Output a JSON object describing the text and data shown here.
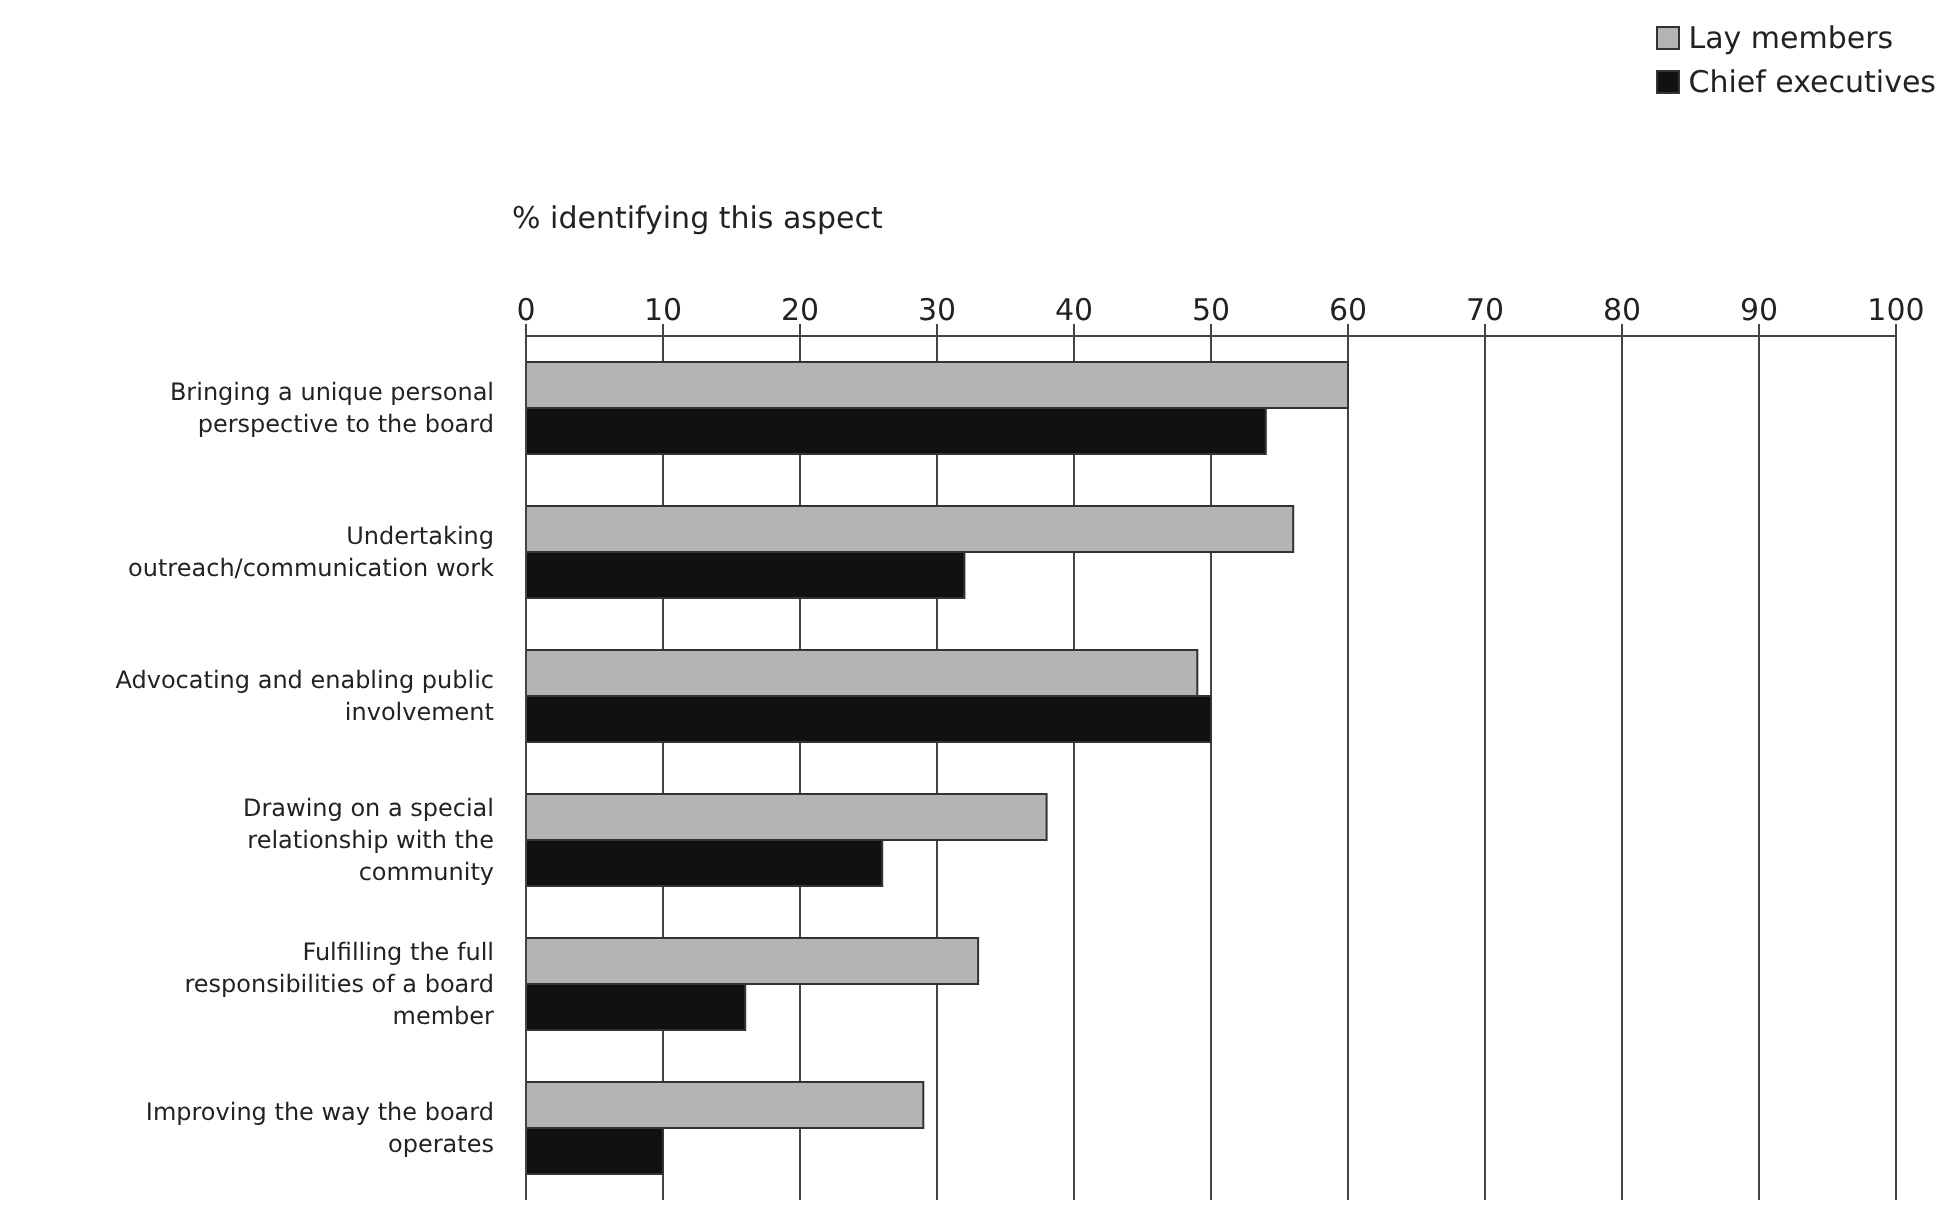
{
  "chart_data": {
    "type": "bar",
    "orientation": "horizontal",
    "xlabel": "% identifying this aspect",
    "categories": [
      "Bringing a unique personal perspective to the board",
      "Undertaking outreach/communication work",
      "Advocating and enabling public involvement",
      "Drawing on a special relationship with the community",
      "Fulfilling the full responsibilities of a board member",
      "Improving the way the board operates"
    ],
    "series": [
      {
        "name": "Lay members",
        "color": "#b4b4b4",
        "values": [
          60,
          56,
          49,
          38,
          33,
          29
        ]
      },
      {
        "name": "Chief executives",
        "color": "#111111",
        "values": [
          54,
          32,
          50,
          26,
          16,
          10
        ]
      }
    ],
    "xlim": [
      0,
      100
    ],
    "xticks": [
      0,
      10,
      20,
      30,
      40,
      50,
      60,
      70,
      80,
      90,
      100
    ],
    "grid": "x",
    "legend": "top right"
  }
}
